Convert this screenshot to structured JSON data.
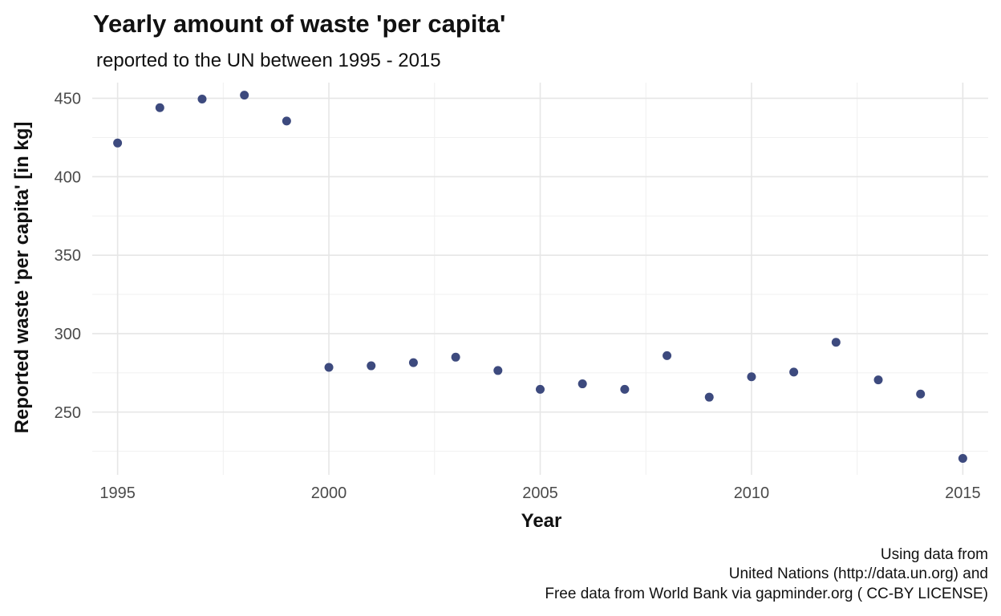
{
  "chart_data": {
    "type": "scatter",
    "title": "Yearly amount of waste 'per capita'",
    "subtitle": "reported to the UN between 1995 - 2015",
    "xlabel": "Year",
    "ylabel": "Reported waste 'per capita' [in kg]",
    "xlim": [
      1994.4,
      2015.6
    ],
    "ylim": [
      210,
      460
    ],
    "x_ticks": [
      1995,
      2000,
      2005,
      2010,
      2015
    ],
    "y_ticks": [
      250,
      300,
      350,
      400,
      450
    ],
    "grid": true,
    "point_color": "#3d4a7e",
    "x": [
      1995,
      1996,
      1997,
      1998,
      1999,
      2000,
      2001,
      2002,
      2003,
      2004,
      2005,
      2006,
      2007,
      2008,
      2009,
      2010,
      2011,
      2012,
      2013,
      2014,
      2015
    ],
    "y": [
      421.5,
      444,
      449.5,
      452,
      435.5,
      278.5,
      279.5,
      281.5,
      285,
      276.5,
      264.5,
      268,
      264.5,
      286,
      259.5,
      272.5,
      275.5,
      294.5,
      270.5,
      261.5,
      220.5
    ],
    "caption": [
      "Using data from",
      "United Nations (http://data.un.org) and",
      "Free data from World Bank via gapminder.org ( CC-BY LICENSE)"
    ]
  }
}
